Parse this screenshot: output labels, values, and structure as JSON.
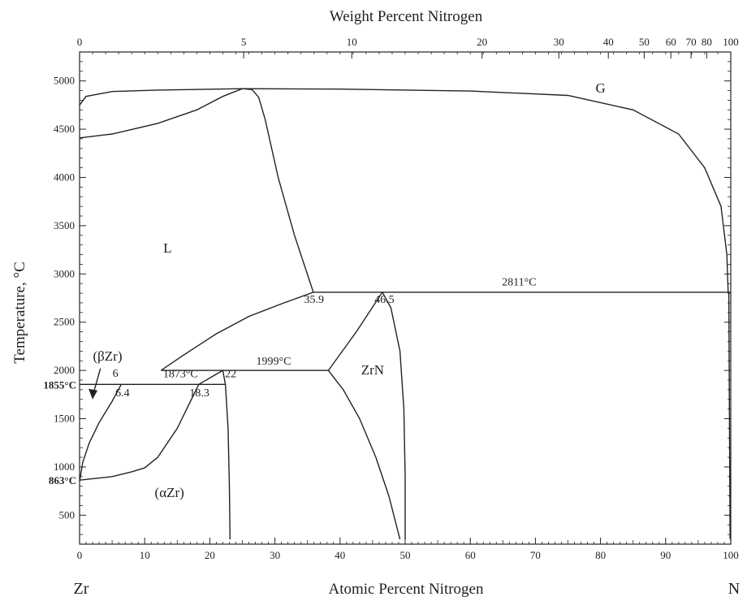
{
  "chart_data": {
    "type": "line",
    "title": "",
    "top_axis": {
      "label": "Weight Percent Nitrogen",
      "ticks": [
        {
          "label": "0",
          "at": 0
        },
        {
          "label": "5",
          "at": 25.2
        },
        {
          "label": "10",
          "at": 41.8
        },
        {
          "label": "20",
          "at": 61.8
        },
        {
          "label": "30",
          "at": 73.6
        },
        {
          "label": "40",
          "at": 81.2
        },
        {
          "label": "50",
          "at": 86.7
        },
        {
          "label": "60",
          "at": 90.8
        },
        {
          "label": "70",
          "at": 93.9
        },
        {
          "label": "80",
          "at": 96.3
        },
        {
          "label": "100",
          "at": 100
        }
      ]
    },
    "xlabel": "Atomic Percent Nitrogen",
    "ylabel": "Temperature, °C",
    "xlim": [
      0,
      100
    ],
    "ylim": [
      200,
      5300
    ],
    "x_ticks": [
      "0",
      "10",
      "20",
      "30",
      "40",
      "50",
      "60",
      "70",
      "80",
      "90",
      "100"
    ],
    "y_ticks": [
      "500",
      "1000",
      "1500",
      "2000",
      "2500",
      "3000",
      "3500",
      "4000",
      "4500",
      "5000"
    ],
    "element_left": "Zr",
    "element_right": "N",
    "series": [
      {
        "values": [
          [
            0,
            4750
          ],
          [
            1,
            4840
          ],
          [
            5,
            4890
          ],
          [
            12,
            4905
          ],
          [
            25,
            4920
          ],
          [
            40,
            4915
          ],
          [
            60,
            4895
          ],
          [
            75,
            4850
          ],
          [
            85,
            4700
          ],
          [
            92,
            4450
          ],
          [
            96,
            4100
          ],
          [
            98.5,
            3700
          ],
          [
            99.4,
            3200
          ],
          [
            99.6,
            2811
          ]
        ]
      },
      {
        "values": [
          [
            0,
            4410
          ],
          [
            5,
            4450
          ],
          [
            12,
            4560
          ],
          [
            18,
            4700
          ],
          [
            22,
            4840
          ],
          [
            25,
            4920
          ]
        ]
      },
      {
        "values": [
          [
            25,
            4920
          ],
          [
            26.5,
            4910
          ],
          [
            27.5,
            4830
          ],
          [
            28.5,
            4600
          ],
          [
            30.5,
            4000
          ],
          [
            33,
            3400
          ],
          [
            35.9,
            2811
          ]
        ]
      },
      {
        "values": [
          [
            12.5,
            2000
          ],
          [
            16,
            2160
          ],
          [
            21,
            2380
          ],
          [
            26,
            2560
          ],
          [
            31,
            2690
          ],
          [
            35.9,
            2811
          ]
        ]
      },
      {
        "values": [
          [
            0,
            850
          ],
          [
            0.5,
            1050
          ],
          [
            1.5,
            1250
          ],
          [
            3,
            1460
          ],
          [
            5,
            1680
          ],
          [
            6.4,
            1855
          ]
        ]
      },
      {
        "values": [
          [
            0,
            863
          ],
          [
            5,
            900
          ],
          [
            8,
            950
          ],
          [
            10,
            990
          ],
          [
            12,
            1100
          ],
          [
            15,
            1400
          ],
          [
            18.3,
            1855
          ],
          [
            22,
            2000
          ]
        ]
      },
      {
        "values": [
          [
            22,
            2000
          ],
          [
            22.4,
            1855
          ],
          [
            22.8,
            1400
          ],
          [
            23,
            800
          ],
          [
            23.1,
            250
          ]
        ]
      },
      {
        "values": [
          [
            38.2,
            2000
          ],
          [
            42.5,
            2400
          ],
          [
            46.5,
            2811
          ]
        ]
      },
      {
        "values": [
          [
            46.5,
            2811
          ],
          [
            47.8,
            2650
          ],
          [
            49.2,
            2200
          ],
          [
            49.8,
            1600
          ],
          [
            50,
            900
          ],
          [
            50,
            250
          ]
        ]
      },
      {
        "values": [
          [
            38.2,
            2000
          ],
          [
            40.5,
            1800
          ],
          [
            43,
            1500
          ],
          [
            45.5,
            1100
          ],
          [
            47.5,
            700
          ],
          [
            49.2,
            250
          ]
        ]
      },
      {
        "values": [
          [
            99.7,
            2811
          ],
          [
            99.8,
            1500
          ],
          [
            99.9,
            250
          ]
        ]
      },
      {
        "values": [
          [
            0,
            1855
          ],
          [
            22.4,
            1855
          ]
        ]
      },
      {
        "values": [
          [
            12.5,
            2000
          ],
          [
            38.2,
            2000
          ]
        ]
      },
      {
        "values": [
          [
            35.9,
            2811
          ],
          [
            100,
            2811
          ]
        ]
      }
    ],
    "regions": [
      {
        "label": "G",
        "x": 80,
        "y": 4880
      },
      {
        "label": "L",
        "x": 13.5,
        "y": 3220
      },
      {
        "label": "ZrN",
        "x": 45,
        "y": 1960
      },
      {
        "label": "(βZr)",
        "x": 4.3,
        "y": 2100
      },
      {
        "label": "(αZr)",
        "x": 13.8,
        "y": 690
      }
    ],
    "annotations": [
      {
        "text": "2811°C",
        "x": 67.5,
        "y": 2880
      },
      {
        "text": "35.9",
        "x": 36,
        "y": 2700
      },
      {
        "text": "46.5",
        "x": 46.8,
        "y": 2700
      },
      {
        "text": "1999°C",
        "x": 29.8,
        "y": 2060
      },
      {
        "text": "1873°C",
        "x": 15.5,
        "y": 1930
      },
      {
        "text": "6",
        "x": 5.5,
        "y": 1935
      },
      {
        "text": "6.4",
        "x": 6.6,
        "y": 1730
      },
      {
        "text": "18.3",
        "x": 18.4,
        "y": 1730
      },
      {
        "text": "22",
        "x": 23.2,
        "y": 1930
      }
    ],
    "temperature_marks": [
      {
        "text": "1855°C",
        "y": 1855
      },
      {
        "text": "863°C",
        "y": 863
      }
    ]
  }
}
